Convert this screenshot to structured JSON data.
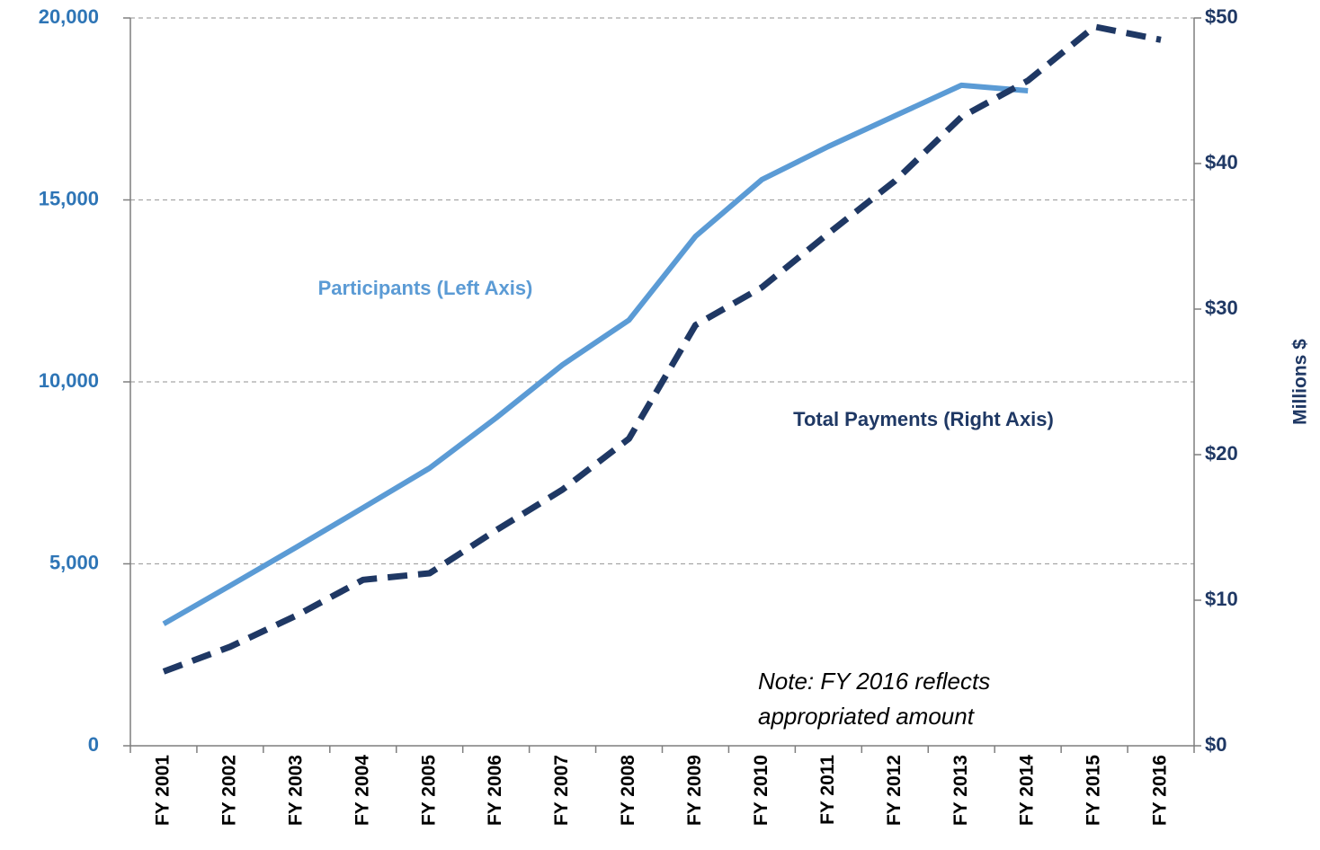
{
  "chart_data": {
    "type": "line",
    "categories": [
      "FY 2001",
      "FY 2002",
      "FY 2003",
      "FY 2004",
      "FY 2005",
      "FY 2006",
      "FY 2007",
      "FY 2008",
      "FY 2009",
      "FY 2010",
      "FY 2011",
      "FY 2012",
      "FY 2013",
      "FY 2014",
      "FY 2015",
      "FY 2016"
    ],
    "series": [
      {
        "name": "Participants (Left Axis)",
        "color": "#5b9bd5",
        "values": [
          3350,
          4400,
          5460,
          6540,
          7630,
          9010,
          10470,
          11700,
          14000,
          15560,
          16470,
          17310,
          18150,
          18000,
          null,
          null
        ]
      },
      {
        "name": "Total Payments (Right Axis)",
        "color": "#1f3864",
        "axis": "y2",
        "values": [
          5.1,
          6.8,
          8.95,
          11.4,
          11.85,
          14.8,
          17.6,
          21.1,
          28.9,
          31.5,
          35.2,
          38.8,
          43.2,
          45.7,
          49.4,
          48.5
        ]
      }
    ],
    "ylim": [
      0,
      20000
    ],
    "yticks": [
      0,
      {
        "value": 5000,
        "label": "5,000"
      },
      {
        "value": 10000,
        "label": "10,000"
      },
      {
        "value": 15000,
        "label": "15,000"
      },
      {
        "value": 20000,
        "label": "20,000"
      }
    ],
    "y2lim": [
      0,
      50
    ],
    "y2ticks": [
      {
        "value": 0,
        "label": "$0"
      },
      {
        "value": 10,
        "label": "$10"
      },
      {
        "value": 20,
        "label": "$20"
      },
      {
        "value": 30,
        "label": "$30"
      },
      {
        "value": 40,
        "label": "$40"
      },
      {
        "value": 50,
        "label": "$50"
      }
    ],
    "y2label": "Millions $",
    "annotation": [
      "Note: FY 2016 reflects",
      "appropriated amount"
    ],
    "grid": true
  }
}
